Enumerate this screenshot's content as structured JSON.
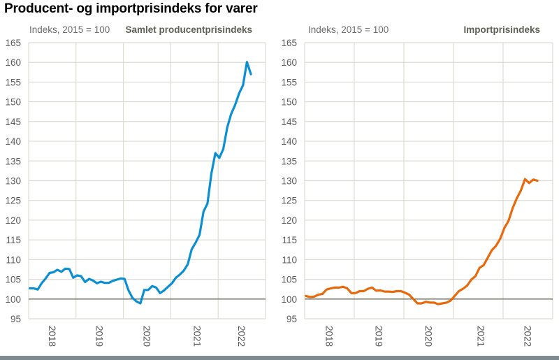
{
  "title": "Producent- og importprisindeks for varer",
  "chart_data": [
    {
      "type": "line",
      "title": "Samlet producentprisindeks",
      "ylabel": "Indeks, 2015 = 100",
      "ylim": [
        95,
        165
      ],
      "yticks": [
        "95",
        "100",
        "105",
        "110",
        "115",
        "120",
        "125",
        "130",
        "135",
        "140",
        "145",
        "150",
        "155",
        "160",
        "165"
      ],
      "xticks": [
        "2018",
        "2019",
        "2020",
        "2021",
        "2022"
      ],
      "x_range": [
        "2018-01",
        "2022-12"
      ],
      "grid": true,
      "reference_line": 100,
      "color": "#0a8fd2",
      "x_start": "2018-01",
      "frequency": "monthly",
      "values": [
        102.7,
        102.7,
        102.4,
        104.0,
        105.2,
        106.6,
        106.8,
        107.4,
        106.9,
        107.7,
        107.6,
        105.4,
        106.0,
        105.8,
        104.3,
        105.1,
        104.7,
        104.0,
        104.4,
        104.1,
        104.1,
        104.6,
        104.9,
        105.2,
        105.1,
        102.2,
        100.3,
        99.4,
        98.9,
        102.3,
        102.3,
        103.3,
        102.9,
        101.5,
        102.2,
        103.1,
        104.0,
        105.4,
        106.2,
        107.2,
        108.8,
        112.6,
        114.3,
        116.3,
        122.2,
        124.2,
        131.9,
        137.0,
        135.8,
        138.0,
        143.5,
        146.9,
        149.2,
        152.1,
        154.2,
        160.1,
        157.0
      ]
    },
    {
      "type": "line",
      "title": "Importprisindeks",
      "ylabel": "Indeks, 2015 = 100",
      "ylim": [
        95,
        165
      ],
      "yticks": [
        "95",
        "100",
        "105",
        "110",
        "115",
        "120",
        "125",
        "130",
        "135",
        "140",
        "145",
        "150",
        "155",
        "160",
        "165"
      ],
      "xticks": [
        "2018",
        "2019",
        "2020",
        "2021",
        "2022"
      ],
      "x_range": [
        "2018-01",
        "2022-12"
      ],
      "grid": true,
      "reference_line": 100,
      "color": "#e8690c",
      "x_start": "2018-01",
      "frequency": "monthly",
      "values": [
        100.8,
        100.5,
        100.6,
        101.1,
        101.3,
        102.4,
        102.7,
        102.9,
        102.9,
        103.1,
        102.7,
        101.5,
        101.5,
        102.0,
        102.0,
        102.6,
        102.9,
        102.1,
        102.2,
        101.9,
        101.9,
        101.8,
        102.0,
        102.0,
        101.6,
        101.1,
        100.0,
        98.9,
        98.9,
        99.3,
        99.1,
        99.1,
        98.7,
        98.9,
        99.1,
        99.6,
        100.8,
        102.0,
        102.6,
        103.4,
        104.9,
        105.8,
        107.9,
        108.6,
        110.5,
        112.4,
        113.5,
        115.3,
        118.0,
        119.8,
        123.0,
        125.5,
        127.5,
        130.4,
        129.4,
        130.3,
        130.0
      ]
    }
  ]
}
